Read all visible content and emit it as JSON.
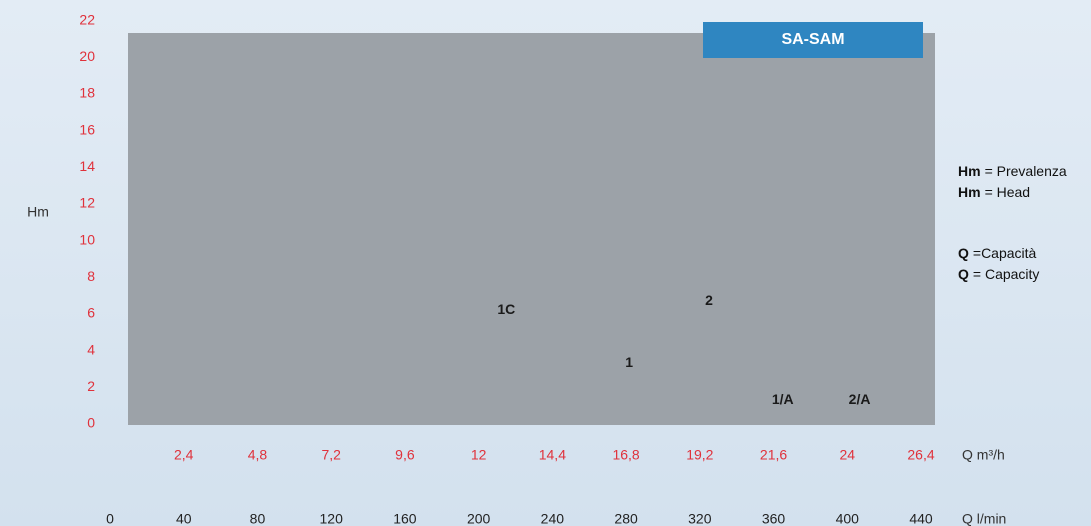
{
  "chart_data": {
    "type": "pump-curve",
    "title": "SA-SAM",
    "ylabel": "Hm",
    "xlabel": "Q m³/h",
    "x2label": "Q l/min",
    "ylim": [
      0,
      22
    ],
    "yticks": [
      0,
      2,
      4,
      6,
      8,
      10,
      12,
      14,
      16,
      18,
      20,
      22
    ],
    "xlim": [
      0,
      26.4
    ],
    "xticks": [
      {
        "value": 2.4,
        "label": "2,4"
      },
      {
        "value": 4.8,
        "label": "4,8"
      },
      {
        "value": 7.2,
        "label": "7,2"
      },
      {
        "value": 9.6,
        "label": "9,6"
      },
      12,
      {
        "value": 14.4,
        "label": "14,4"
      },
      {
        "value": 16.8,
        "label": "16,8"
      },
      {
        "value": 19.2,
        "label": "19,2"
      },
      {
        "value": 21.6,
        "label": "21,6"
      },
      24,
      {
        "value": 26.4,
        "label": "26,4"
      }
    ],
    "x2lim": [
      0,
      440
    ],
    "x2ticks": [
      0,
      40,
      80,
      120,
      160,
      200,
      240,
      280,
      320,
      360,
      400,
      440
    ],
    "annotations": [
      {
        "text": "1C",
        "x": 12.9,
        "y": 6.2
      },
      {
        "text": "2",
        "x": 19.5,
        "y": 6.7
      },
      {
        "text": "1",
        "x": 16.9,
        "y": 3.3
      },
      {
        "text": "1/A",
        "x": 21.9,
        "y": 1.3
      },
      {
        "text": "2/A",
        "x": 24.4,
        "y": 1.3
      }
    ],
    "legend": [
      {
        "symbol": "Hm",
        "text": "= Prevalenza"
      },
      {
        "symbol": "Hm",
        "text": "= Head"
      },
      {
        "symbol": "Q",
        "text": "=Capacità"
      },
      {
        "symbol": "Q",
        "text": "= Capacity"
      }
    ],
    "tick_color": "#e0313b",
    "plot_color": "#9ca2a8",
    "badge_color": "#2f86c1"
  }
}
